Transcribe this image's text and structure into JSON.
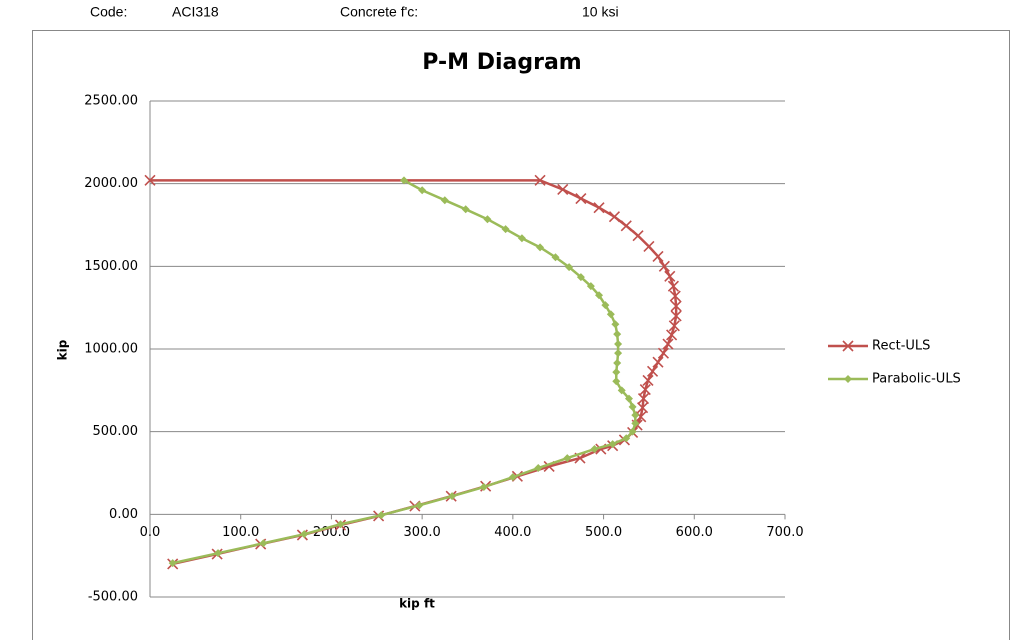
{
  "header": {
    "code_label": "Code:",
    "code": "ACI318",
    "fc_label": "Concrete f'c:",
    "fc": "10 ksi"
  },
  "chart_data": {
    "type": "line",
    "title": "P-M Diagram",
    "x_label": "kip ft",
    "y_label": "kip",
    "xlim": [
      0,
      700
    ],
    "ylim": [
      -500,
      2500
    ],
    "xticks": [
      {
        "value": 0,
        "label": "0.0"
      },
      {
        "value": 100,
        "label": "100.0"
      },
      {
        "value": 200,
        "label": "200.0"
      },
      {
        "value": 300,
        "label": "300.0"
      },
      {
        "value": 400,
        "label": "400.0"
      },
      {
        "value": 500,
        "label": "500.0"
      },
      {
        "value": 600,
        "label": "600.0"
      },
      {
        "value": 700,
        "label": "700.0"
      }
    ],
    "yticks": [
      {
        "value": -500,
        "label": "-500.00"
      },
      {
        "value": 0,
        "label": "0.00"
      },
      {
        "value": 500,
        "label": "500.00"
      },
      {
        "value": 1000,
        "label": "1000.00"
      },
      {
        "value": 1500,
        "label": "1500.00"
      },
      {
        "value": 2000,
        "label": "2000.00"
      },
      {
        "value": 2500,
        "label": "2500.00"
      }
    ],
    "grid": true,
    "legend": "right",
    "series": [
      {
        "name": "Rect-ULS",
        "color": "#c0504d",
        "marker": "x",
        "x": [
          0,
          430,
          455,
          475,
          495,
          512,
          525,
          538,
          550,
          560,
          567,
          573,
          577,
          579,
          580,
          580,
          578,
          575,
          571,
          566,
          560,
          554,
          549,
          546,
          544,
          543,
          541,
          537,
          532,
          523,
          510,
          497,
          474,
          440,
          405,
          370,
          332,
          292,
          252,
          210,
          168,
          122,
          74,
          25
        ],
        "values": [
          2020,
          2020,
          1965,
          1910,
          1855,
          1800,
          1745,
          1685,
          1620,
          1560,
          1500,
          1440,
          1380,
          1320,
          1260,
          1200,
          1140,
          1085,
          1030,
          975,
          920,
          865,
          810,
          755,
          700,
          645,
          590,
          540,
          495,
          450,
          415,
          395,
          340,
          290,
          230,
          170,
          110,
          50,
          -10,
          -65,
          -125,
          -180,
          -240,
          -300
        ]
      },
      {
        "name": "Parabolic-ULS",
        "color": "#9bbb59",
        "marker": "diamond",
        "x": [
          280,
          300,
          325,
          348,
          372,
          392,
          410,
          430,
          447,
          462,
          475,
          486,
          495,
          502,
          508,
          513,
          515,
          516,
          516,
          515,
          514,
          514,
          520,
          528,
          532,
          535,
          535,
          532,
          525,
          510,
          490,
          460,
          428,
          400,
          368,
          333,
          297,
          255,
          210,
          170,
          125,
          75,
          25
        ],
        "values": [
          2020,
          1960,
          1900,
          1845,
          1785,
          1725,
          1670,
          1615,
          1555,
          1495,
          1435,
          1380,
          1325,
          1265,
          1210,
          1150,
          1090,
          1030,
          975,
          915,
          860,
          805,
          750,
          700,
          650,
          600,
          550,
          500,
          460,
          425,
          395,
          340,
          280,
          225,
          165,
          110,
          55,
          -5,
          -60,
          -120,
          -175,
          -235,
          -295
        ]
      }
    ]
  }
}
